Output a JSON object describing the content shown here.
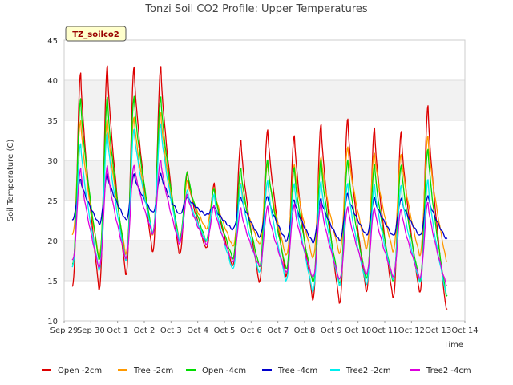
{
  "chart_data": {
    "type": "line",
    "title": "Tonzi Soil CO2 Profile: Upper Temperatures",
    "badge": "TZ_soilco2",
    "xlabel": "Time",
    "ylabel": "Soil Temperature (C)",
    "ylim": [
      10,
      45
    ],
    "y_ticks": [
      10,
      15,
      20,
      25,
      30,
      35,
      40,
      45
    ],
    "x_range_days": [
      0,
      15
    ],
    "x_ticks": [
      {
        "day": 0,
        "label": "Sep 29"
      },
      {
        "day": 1,
        "label": "Sep 30"
      },
      {
        "day": 2,
        "label": "Oct 1"
      },
      {
        "day": 3,
        "label": "Oct 2"
      },
      {
        "day": 4,
        "label": "Oct 3"
      },
      {
        "day": 5,
        "label": "Oct 4"
      },
      {
        "day": 6,
        "label": "Oct 5"
      },
      {
        "day": 7,
        "label": "Oct 6"
      },
      {
        "day": 8,
        "label": "Oct 7"
      },
      {
        "day": 9,
        "label": "Oct 8"
      },
      {
        "day": 10,
        "label": "Oct 9"
      },
      {
        "day": 11,
        "label": "Oct 10"
      },
      {
        "day": 12,
        "label": "Oct 11"
      },
      {
        "day": 13,
        "label": "Oct 12"
      },
      {
        "day": 14,
        "label": "Oct 13"
      },
      {
        "day": 15,
        "label": "Oct 14"
      }
    ],
    "grid": true,
    "legend_position": "bottom",
    "series": [
      {
        "name": "Open -2cm",
        "color": "#dd0000",
        "daily_min": [
          14.4,
          14.0,
          15.8,
          18.6,
          18.3,
          19.0,
          16.8,
          14.8,
          15.6,
          12.7,
          12.3,
          13.7,
          12.9,
          13.5,
          11.4,
          14.0
        ],
        "daily_max": [
          41.0,
          41.8,
          41.6,
          41.6,
          28.5,
          27.1,
          32.5,
          33.9,
          33.2,
          34.6,
          35.2,
          34.0,
          33.5,
          36.7
        ]
      },
      {
        "name": "Tree -2cm",
        "color": "#ff9900",
        "daily_min": [
          20.7,
          18.0,
          18.4,
          20.8,
          20.2,
          21.5,
          19.3,
          19.5,
          18.1,
          17.8,
          18.4,
          19.0,
          18.7,
          18.2,
          17.5,
          20.0
        ],
        "daily_max": [
          35.0,
          35.2,
          35.5,
          36.0,
          27.5,
          26.5,
          27.0,
          29.5,
          29.5,
          30.5,
          31.8,
          31.0,
          30.8,
          33.0
        ]
      },
      {
        "name": "Open -4cm",
        "color": "#00dd00",
        "daily_min": [
          17.0,
          17.5,
          17.6,
          20.8,
          20.0,
          20.0,
          17.8,
          16.8,
          16.5,
          14.8,
          14.6,
          15.2,
          15.0,
          15.0,
          13.2,
          15.5
        ],
        "daily_max": [
          37.6,
          37.8,
          38.0,
          38.0,
          28.7,
          26.5,
          29.0,
          30.0,
          29.0,
          30.0,
          30.0,
          29.5,
          29.5,
          31.5
        ]
      },
      {
        "name": "Tree -4cm",
        "color": "#0000cc",
        "daily_min": [
          22.7,
          22.1,
          22.6,
          23.5,
          23.3,
          23.2,
          21.4,
          20.5,
          20.0,
          19.8,
          20.0,
          20.7,
          20.6,
          20.6,
          20.2,
          21.5
        ],
        "daily_max": [
          27.6,
          28.2,
          28.2,
          28.3,
          25.5,
          24.3,
          25.5,
          25.6,
          25.1,
          25.2,
          25.8,
          25.3,
          25.2,
          25.6
        ]
      },
      {
        "name": "Tree2 -2cm",
        "color": "#00eeee",
        "daily_min": [
          16.8,
          16.4,
          17.6,
          21.0,
          20.0,
          20.0,
          16.4,
          16.0,
          15.0,
          13.7,
          14.5,
          14.6,
          15.2,
          14.8,
          13.3,
          15.5
        ],
        "daily_max": [
          32.2,
          33.5,
          33.9,
          34.5,
          26.2,
          25.7,
          27.0,
          27.5,
          27.2,
          27.5,
          27.2,
          27.0,
          26.8,
          27.5
        ]
      },
      {
        "name": "Tree2 -4cm",
        "color": "#dd00dd",
        "daily_min": [
          17.5,
          16.6,
          17.8,
          20.9,
          19.7,
          19.6,
          17.4,
          16.8,
          16.0,
          15.4,
          15.2,
          15.8,
          15.6,
          15.4,
          14.5,
          16.5
        ],
        "daily_max": [
          29.0,
          29.4,
          29.5,
          30.1,
          25.8,
          24.3,
          24.0,
          24.2,
          24.5,
          24.8,
          24.3,
          24.2,
          24.0,
          24.8
        ]
      }
    ]
  }
}
